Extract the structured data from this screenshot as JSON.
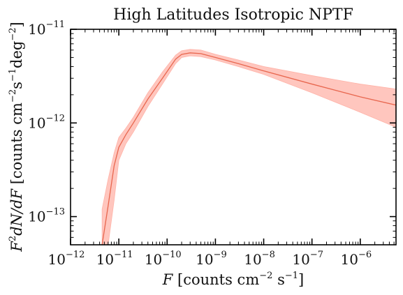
{
  "chart_data": {
    "type": "line",
    "title": "High Latitudes Isotropic NPTF",
    "xlabel": "F [counts cm^-2 s^-1]",
    "ylabel": "F^2 dN/dF [counts cm^-2 s^-1 deg^-2]",
    "x_scale": "log",
    "y_scale": "log",
    "xlim": [
      1e-12,
      5.5e-06
    ],
    "ylim": [
      5e-14,
      1e-11
    ],
    "x_ticks": [
      {
        "base": "10",
        "exp": "−12"
      },
      {
        "base": "10",
        "exp": "−11"
      },
      {
        "base": "10",
        "exp": "−10"
      },
      {
        "base": "10",
        "exp": "−9"
      },
      {
        "base": "10",
        "exp": "−8"
      },
      {
        "base": "10",
        "exp": "−7"
      },
      {
        "base": "10",
        "exp": "−6"
      }
    ],
    "y_ticks": [
      {
        "base": "10",
        "exp": "−13"
      },
      {
        "base": "10",
        "exp": "−12"
      },
      {
        "base": "10",
        "exp": "−11"
      }
    ],
    "grid": false,
    "legend": "none",
    "line_color": "#e8674f",
    "band_color": "#ffb3a8",
    "series": [
      {
        "x": [
          4.5e-12,
          6e-12,
          8e-12,
          1e-11,
          1.4e-11,
          2e-11,
          4e-11,
          8e-11,
          1.5e-10,
          2e-10,
          3e-10,
          5e-10,
          1e-09,
          3e-09,
          1e-08,
          1e-07,
          1e-06,
          5.5e-06
        ],
        "y": [
          5e-14,
          1.3e-13,
          3.5e-13,
          5.5e-13,
          7.5e-13,
          1e-12,
          1.8e-12,
          3e-12,
          4.8e-12,
          5.4e-12,
          5.6e-12,
          5.5e-12,
          5e-12,
          4.3e-12,
          3.6e-12,
          2.6e-12,
          1.9e-12,
          1.55e-12
        ],
        "lower": [
          5e-14,
          5e-14,
          1.5e-13,
          4e-13,
          6e-13,
          8e-13,
          1.5e-12,
          2.6e-12,
          4.3e-12,
          5e-12,
          5.2e-12,
          5.1e-12,
          4.7e-12,
          4e-12,
          3.3e-12,
          2.1e-12,
          1.3e-12,
          9e-13
        ],
        "upper": [
          1.2e-13,
          2.5e-13,
          4.8e-13,
          7e-13,
          8.8e-13,
          1.15e-12,
          2.1e-12,
          3.5e-12,
          5.3e-12,
          5.9e-12,
          6.1e-12,
          6e-12,
          5.4e-12,
          4.7e-12,
          4e-12,
          3.2e-12,
          2.6e-12,
          2.3e-12
        ]
      }
    ]
  }
}
